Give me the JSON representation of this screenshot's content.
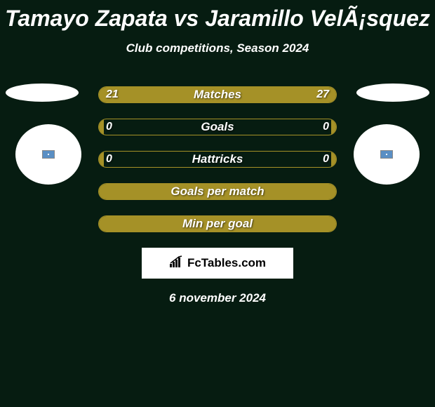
{
  "title": "Tamayo Zapata vs Jaramillo VelÃ¡squez",
  "subtitle": "Club competitions, Season 2024",
  "colors": {
    "background": "#061c11",
    "bar_fill": "#a59127",
    "bar_border": "#a59127",
    "text": "#ffffff"
  },
  "bars": [
    {
      "label": "Matches",
      "left_value": "21",
      "right_value": "27",
      "left_pct": 42,
      "right_pct": 58,
      "show_values": true
    },
    {
      "label": "Goals",
      "left_value": "0",
      "right_value": "0",
      "left_pct": 2,
      "right_pct": 2,
      "show_values": true
    },
    {
      "label": "Hattricks",
      "left_value": "0",
      "right_value": "0",
      "left_pct": 2,
      "right_pct": 2,
      "show_values": true
    },
    {
      "label": "Goals per match",
      "left_value": "",
      "right_value": "",
      "left_pct": 100,
      "right_pct": 0,
      "show_values": false
    },
    {
      "label": "Min per goal",
      "left_value": "",
      "right_value": "",
      "left_pct": 100,
      "right_pct": 0,
      "show_values": false
    }
  ],
  "logo": "FcTables.com",
  "date": "6 november 2024"
}
